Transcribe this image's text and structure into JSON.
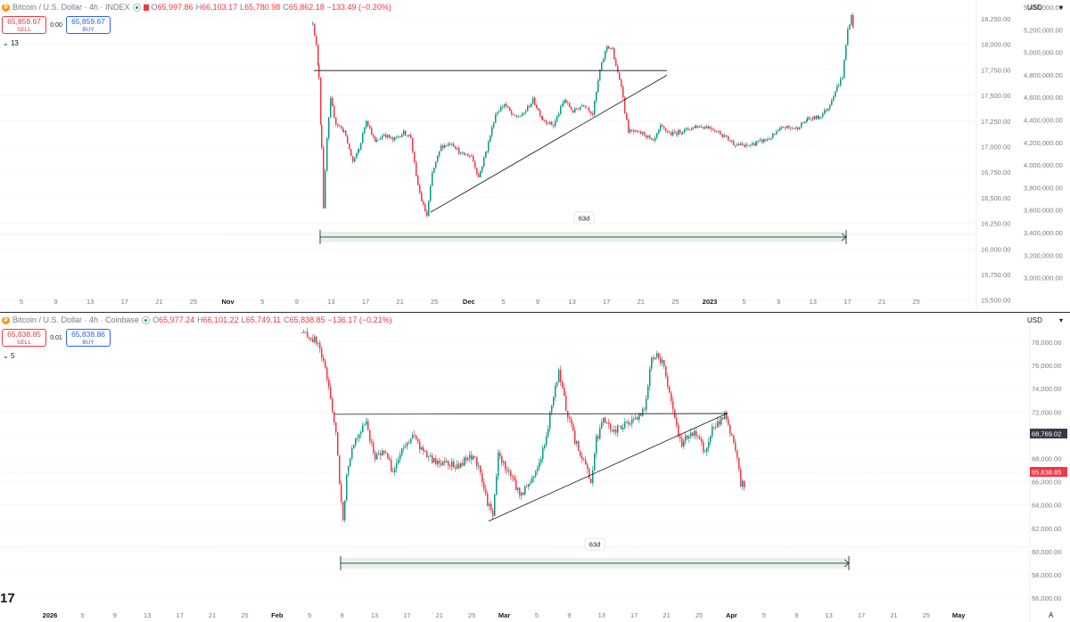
{
  "panes": [
    {
      "legend": {
        "title": "Bitcoin / U.S. Dollar · 4h · INDEX",
        "o_label": "O",
        "o": "65,997.86",
        "h_label": "H",
        "h": "66,103.17",
        "l_label": "L",
        "l": "65,780.98",
        "c_label": "C",
        "c": "65,862.18",
        "change": "−133.49 (−0.20%)"
      },
      "trade": {
        "sell_price": "65,859.67",
        "sell_label": "SELL",
        "spread": "0.00",
        "buy_price": "65,859.67",
        "buy_label": "BUY"
      },
      "indicators_count": "13",
      "currency": "USD",
      "duration_label": "63d"
    },
    {
      "legend": {
        "title": "Bitcoin / U.S. Dollar · 4h · Coinbase",
        "o_label": "O",
        "o": "65,977.24",
        "h_label": "H",
        "h": "66,101.22",
        "l_label": "L",
        "l": "65,749.11",
        "c_label": "C",
        "c": "65,838.85",
        "change": "−136.17 (−0.21%)"
      },
      "trade": {
        "sell_price": "65,838.85",
        "sell_label": "SELL",
        "spread": "0.01",
        "buy_price": "65,838.86",
        "buy_label": "BUY"
      },
      "indicators_count": "5",
      "currency": "USD",
      "duration_label": "63d",
      "price_tags": {
        "crosshair": "68,769.02",
        "last": "65,838.85"
      },
      "auto_label": "A"
    }
  ],
  "chart_data": [
    {
      "type": "candlestick",
      "title": "Bitcoin / U.S. Dollar · 4h · INDEX",
      "y_axis_left_ticks": [
        "18,250.00",
        "18,000.00",
        "17,750.00",
        "17,500.00",
        "17,250.00",
        "17,000.00",
        "16,750.00",
        "16,500.00",
        "16,250.00",
        "16,000.00",
        "15,750.00",
        "15,500.00",
        "15,250.00",
        "15,000.00",
        "14,750.00"
      ],
      "y_axis_right_ticks": [
        "5,400,000.00",
        "5,200,000.00",
        "5,000,000.00",
        "4,800,000.00",
        "4,600,000.00",
        "4,400,000.00",
        "4,200,000.00",
        "4,000,000.00",
        "3,800,000.00",
        "3,600,000.00",
        "3,400,000.00",
        "3,200,000.00",
        "3,000,000.00"
      ],
      "x_ticks": [
        "5",
        "9",
        "13",
        "17",
        "21",
        "25",
        "Nov",
        "5",
        "9",
        "13",
        "17",
        "21",
        "25",
        "Dec",
        "5",
        "9",
        "13",
        "17",
        "21",
        "25",
        "2023",
        "5",
        "9",
        "13",
        "17",
        "21",
        "25"
      ],
      "series_path": [
        [
          350,
          18210
        ],
        [
          354,
          17900
        ],
        [
          357,
          17500
        ],
        [
          360,
          16600
        ],
        [
          362,
          15820
        ],
        [
          366,
          16700
        ],
        [
          370,
          17200
        ],
        [
          376,
          16900
        ],
        [
          385,
          16800
        ],
        [
          395,
          16400
        ],
        [
          402,
          16560
        ],
        [
          410,
          16950
        ],
        [
          420,
          16650
        ],
        [
          430,
          16760
        ],
        [
          440,
          16680
        ],
        [
          452,
          16780
        ],
        [
          460,
          16720
        ],
        [
          466,
          16200
        ],
        [
          472,
          15900
        ],
        [
          478,
          15700
        ],
        [
          484,
          16250
        ],
        [
          494,
          16600
        ],
        [
          506,
          16650
        ],
        [
          516,
          16500
        ],
        [
          528,
          16480
        ],
        [
          536,
          16200
        ],
        [
          545,
          16560
        ],
        [
          555,
          17020
        ],
        [
          565,
          17150
        ],
        [
          575,
          16980
        ],
        [
          585,
          17000
        ],
        [
          597,
          17200
        ],
        [
          608,
          16950
        ],
        [
          620,
          16870
        ],
        [
          632,
          17200
        ],
        [
          642,
          17050
        ],
        [
          654,
          17150
        ],
        [
          664,
          17020
        ],
        [
          672,
          17580
        ],
        [
          680,
          17900
        ],
        [
          686,
          17850
        ],
        [
          690,
          17620
        ],
        [
          696,
          17400
        ],
        [
          700,
          17050
        ],
        [
          704,
          16800
        ],
        [
          712,
          16780
        ],
        [
          722,
          16760
        ],
        [
          732,
          16650
        ],
        [
          740,
          16850
        ],
        [
          752,
          16760
        ],
        [
          765,
          16800
        ],
        [
          780,
          16860
        ],
        [
          795,
          16850
        ],
        [
          810,
          16750
        ],
        [
          822,
          16640
        ],
        [
          835,
          16600
        ],
        [
          848,
          16650
        ],
        [
          862,
          16700
        ],
        [
          878,
          16850
        ],
        [
          892,
          16830
        ],
        [
          905,
          16950
        ],
        [
          918,
          16980
        ],
        [
          928,
          17100
        ],
        [
          936,
          17320
        ],
        [
          944,
          17500
        ],
        [
          950,
          18110
        ],
        [
          954,
          18280
        ],
        [
          958,
          18040
        ]
      ],
      "horizontal_line": 17580,
      "trend_line": [
        [
          483,
          15750
        ],
        [
          748,
          17520
        ]
      ],
      "date_range_measure": "63d"
    },
    {
      "type": "candlestick",
      "title": "Bitcoin / U.S. Dollar · 4h · Coinbase",
      "y_axis_ticks": [
        "78,000.00",
        "76,000.00",
        "74,000.00",
        "72,000.00",
        "70,000.00",
        "68,000.00",
        "66,000.00",
        "64,000.00",
        "62,000.00",
        "60,000.00",
        "58,000.00",
        "56,000.00"
      ],
      "x_ticks": [
        "2026",
        "5",
        "9",
        "13",
        "17",
        "21",
        "25",
        "Feb",
        "5",
        "9",
        "13",
        "17",
        "21",
        "25",
        "Mar",
        "5",
        "9",
        "13",
        "17",
        "21",
        "25",
        "Apr",
        "5",
        "9",
        "13",
        "17",
        "21",
        "25",
        "May"
      ],
      "series_path": [
        [
          338,
          78800
        ],
        [
          348,
          78400
        ],
        [
          356,
          77900
        ],
        [
          364,
          75600
        ],
        [
          370,
          73300
        ],
        [
          376,
          70000
        ],
        [
          380,
          66000
        ],
        [
          384,
          62500
        ],
        [
          388,
          66800
        ],
        [
          394,
          69000
        ],
        [
          402,
          70300
        ],
        [
          410,
          71000
        ],
        [
          420,
          68000
        ],
        [
          430,
          68700
        ],
        [
          440,
          66800
        ],
        [
          450,
          68600
        ],
        [
          462,
          70000
        ],
        [
          474,
          68500
        ],
        [
          488,
          67600
        ],
        [
          500,
          67800
        ],
        [
          512,
          67200
        ],
        [
          522,
          67900
        ],
        [
          532,
          68200
        ],
        [
          538,
          66500
        ],
        [
          546,
          64200
        ],
        [
          552,
          63000
        ],
        [
          558,
          68300
        ],
        [
          566,
          67300
        ],
        [
          574,
          66300
        ],
        [
          582,
          64900
        ],
        [
          592,
          65700
        ],
        [
          602,
          67200
        ],
        [
          612,
          69700
        ],
        [
          620,
          73600
        ],
        [
          626,
          75300
        ],
        [
          634,
          72400
        ],
        [
          644,
          69500
        ],
        [
          654,
          67900
        ],
        [
          662,
          66000
        ],
        [
          668,
          69600
        ],
        [
          676,
          71200
        ],
        [
          688,
          70300
        ],
        [
          700,
          71000
        ],
        [
          712,
          71200
        ],
        [
          722,
          72300
        ],
        [
          730,
          76500
        ],
        [
          736,
          77200
        ],
        [
          744,
          75800
        ],
        [
          750,
          73600
        ],
        [
          756,
          71200
        ],
        [
          764,
          69200
        ],
        [
          774,
          70400
        ],
        [
          782,
          69800
        ],
        [
          790,
          68400
        ],
        [
          798,
          70700
        ],
        [
          806,
          71200
        ],
        [
          812,
          71700
        ],
        [
          818,
          70300
        ],
        [
          824,
          68700
        ],
        [
          830,
          65800
        ],
        [
          836,
          65800
        ]
      ],
      "horizontal_line": 71800,
      "trend_line": [
        [
          548,
          62600
        ],
        [
          816,
          71900
        ]
      ],
      "date_range_measure": "63d"
    }
  ],
  "colors": {
    "up": "#089981",
    "down": "#f23645",
    "range_fill": "#e5f2e6",
    "range_line": "#131722",
    "price_tag": "#f23645",
    "crosshair_tag": "#363a45"
  }
}
